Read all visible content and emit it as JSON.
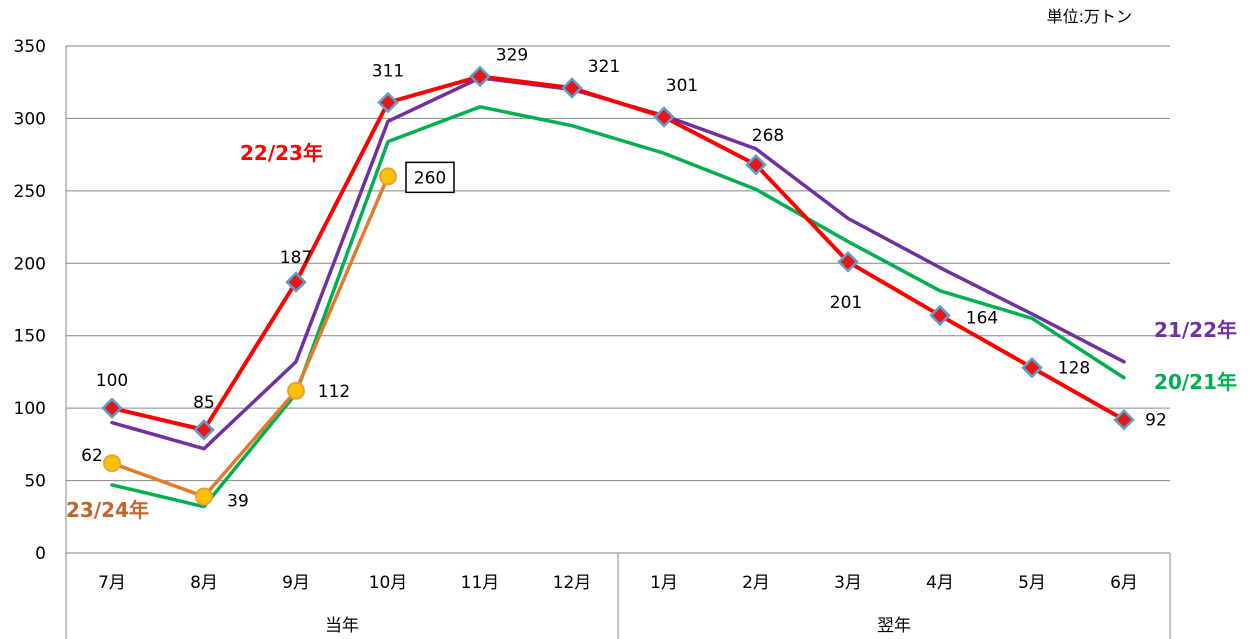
{
  "chart_data": {
    "type": "line",
    "unit_label": "単位:万トン",
    "categories": [
      "7月",
      "8月",
      "9月",
      "10月",
      "11月",
      "12月",
      "1月",
      "2月",
      "3月",
      "4月",
      "5月",
      "6月"
    ],
    "groups": [
      {
        "label": "当年",
        "months": [
          "7月",
          "8月",
          "9月",
          "10月",
          "11月",
          "12月"
        ]
      },
      {
        "label": "翌年",
        "months": [
          "1月",
          "2月",
          "3月",
          "4月",
          "5月",
          "6月"
        ]
      }
    ],
    "ylim": [
      0,
      350
    ],
    "yticks": [
      0,
      50,
      100,
      150,
      200,
      250,
      300,
      350
    ],
    "grid": true,
    "series": [
      {
        "name": "20/21年",
        "color": "#00b050",
        "values": [
          47,
          32,
          110,
          284,
          308,
          295,
          276,
          251,
          215,
          181,
          162,
          121
        ]
      },
      {
        "name": "21/22年",
        "color": "#7030a0",
        "values": [
          90,
          72,
          132,
          298,
          328,
          320,
          302,
          279,
          231,
          197,
          165,
          132
        ]
      },
      {
        "name": "22/23年",
        "color": "#ff0000",
        "values": [
          100,
          85,
          187,
          311,
          329,
          321,
          301,
          268,
          201,
          164,
          128,
          92
        ],
        "labels": [
          "100",
          "85",
          "187",
          "311",
          "329",
          "321",
          "301",
          "268",
          "201",
          "164",
          "128",
          "92"
        ]
      },
      {
        "name": "23/24年",
        "color": "#e07b2c",
        "values": [
          62,
          39,
          112,
          260,
          null,
          null,
          null,
          null,
          null,
          null,
          null,
          null
        ],
        "labels": [
          "62",
          "39",
          "112",
          "260"
        ]
      }
    ]
  }
}
